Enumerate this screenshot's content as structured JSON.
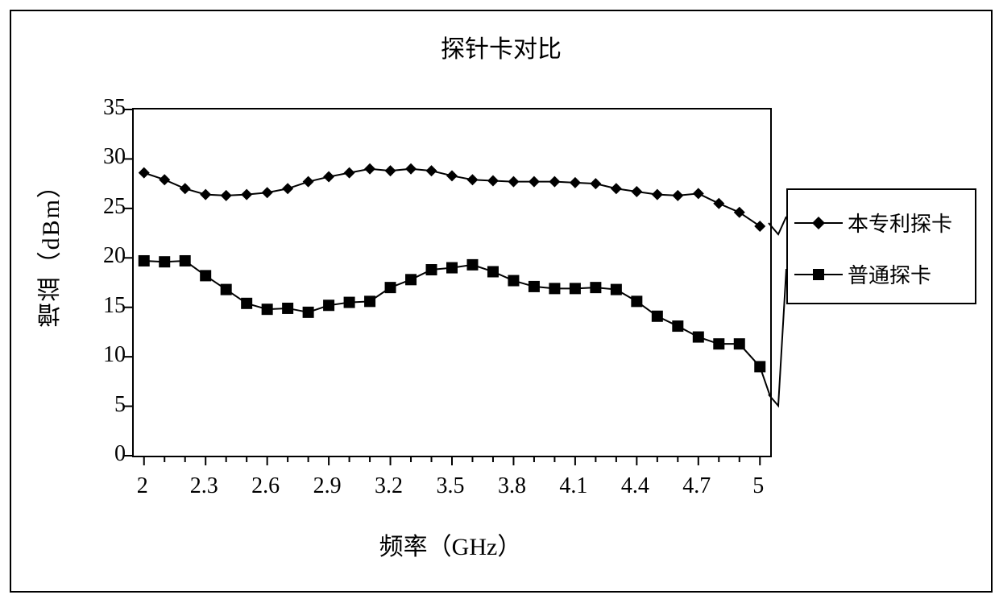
{
  "title": "探针卡对比",
  "x_axis_label": "频率（GHz）",
  "y_axis_label": "增益（dBm）",
  "chart": {
    "type": "line",
    "x_values": [
      2.0,
      2.1,
      2.2,
      2.3,
      2.4,
      2.5,
      2.6,
      2.7,
      2.8,
      2.9,
      3.0,
      3.1,
      3.2,
      3.3,
      3.4,
      3.5,
      3.6,
      3.7,
      3.8,
      3.9,
      4.0,
      4.1,
      4.2,
      4.3,
      4.4,
      4.5,
      4.6,
      4.7,
      4.8,
      4.9,
      5.0
    ],
    "x_tick_labels": [
      "2",
      "2.3",
      "2.6",
      "2.9",
      "3.2",
      "3.5",
      "3.8",
      "4.1",
      "4.4",
      "4.7",
      "5"
    ],
    "x_tick_positions": [
      2.0,
      2.3,
      2.6,
      2.9,
      3.2,
      3.5,
      3.8,
      4.1,
      4.4,
      4.7,
      5.0
    ],
    "ylim": [
      0,
      35
    ],
    "ytick_step": 5,
    "y_tick_labels": [
      "0",
      "5",
      "10",
      "15",
      "20",
      "25",
      "30",
      "35"
    ],
    "xlim": [
      2.0,
      5.0
    ],
    "background_color": "#ffffff",
    "border_color": "#000000",
    "line_width": 2,
    "marker_size": 7,
    "tick_color": "#000000",
    "minor_tick_length": 8,
    "major_tick_length": 12,
    "title_fontsize": 30,
    "label_fontsize": 30,
    "tick_label_fontsize": 28
  },
  "series": [
    {
      "name": "本专利探卡",
      "marker": "diamond",
      "color": "#000000",
      "values": [
        28.6,
        27.9,
        27.0,
        26.4,
        26.3,
        26.4,
        26.6,
        27.0,
        27.7,
        28.2,
        28.6,
        29.0,
        28.8,
        29.0,
        28.8,
        28.3,
        27.9,
        27.8,
        27.7,
        27.7,
        27.7,
        27.6,
        27.5,
        27.0,
        26.7,
        26.4,
        26.3,
        26.5,
        25.5,
        24.6,
        23.2
      ]
    },
    {
      "name": "普通探卡",
      "marker": "square",
      "color": "#000000",
      "values": [
        19.7,
        19.6,
        19.7,
        18.2,
        16.8,
        15.4,
        14.8,
        14.9,
        14.5,
        15.2,
        15.5,
        15.6,
        17.0,
        17.8,
        18.8,
        19.0,
        19.3,
        18.6,
        17.7,
        17.1,
        16.9,
        16.9,
        17.0,
        16.8,
        15.6,
        14.1,
        13.1,
        12.0,
        11.3,
        11.3,
        9.0,
        6.0
      ]
    }
  ],
  "legend": {
    "items": [
      {
        "label": "本专利探卡",
        "marker": "diamond"
      },
      {
        "label": "普通探卡",
        "marker": "square"
      }
    ]
  }
}
